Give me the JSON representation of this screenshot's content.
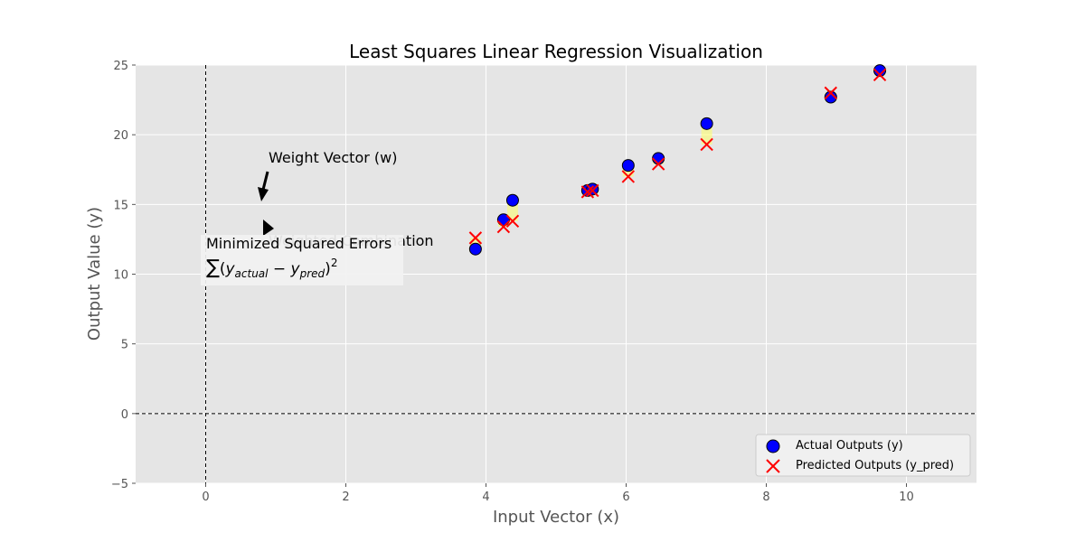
{
  "chart_data": {
    "type": "scatter",
    "title": "Least Squares Linear Regression Visualization",
    "xlabel": "Input Vector (x)",
    "ylabel": "Output Value (y)",
    "xlim": [
      -1,
      11
    ],
    "ylim": [
      -5,
      25
    ],
    "xticks": [
      0,
      2,
      4,
      6,
      8,
      10
    ],
    "yticks": [
      -5,
      0,
      5,
      10,
      15,
      20,
      25
    ],
    "grid": true,
    "legend_position": "bottom-right",
    "reference_lines": {
      "x": 0,
      "y": 0
    },
    "series": [
      {
        "name": "Actual Outputs (y)",
        "marker": "circle",
        "color": "#0000ff",
        "points": [
          [
            3.85,
            11.8
          ],
          [
            4.25,
            13.9
          ],
          [
            4.38,
            15.3
          ],
          [
            5.45,
            16.0
          ],
          [
            5.52,
            16.1
          ],
          [
            6.03,
            17.8
          ],
          [
            6.46,
            18.3
          ],
          [
            7.15,
            20.8
          ],
          [
            8.92,
            22.7
          ],
          [
            9.62,
            24.6
          ]
        ]
      },
      {
        "name": "Predicted Outputs (y_pred)",
        "marker": "x",
        "color": "#ff0000",
        "points": [
          [
            3.85,
            12.6
          ],
          [
            4.25,
            13.4
          ],
          [
            4.38,
            13.8
          ],
          [
            5.45,
            15.9
          ],
          [
            5.52,
            16.0
          ],
          [
            6.03,
            17.0
          ],
          [
            6.46,
            17.9
          ],
          [
            7.15,
            19.3
          ],
          [
            8.92,
            23.0
          ],
          [
            9.62,
            24.3
          ]
        ]
      }
    ],
    "annotations": {
      "weight_vector": {
        "text": "Weight Vector (w)"
      },
      "weighted_combination": {
        "text": "Weighted Combination"
      },
      "errors_box": {
        "line1": "Minimized Squared Errors",
        "formula_sum": "∑",
        "formula_open": "(",
        "formula_y1": "y",
        "formula_sub1": "actual",
        "formula_minus": " − ",
        "formula_y2": "y",
        "formula_sub2": "pred",
        "formula_close": ")",
        "formula_power": "2"
      }
    },
    "colors": {
      "background": "#e5e5e5",
      "grid": "#ffffff",
      "error_segment": "#ffff66"
    }
  }
}
